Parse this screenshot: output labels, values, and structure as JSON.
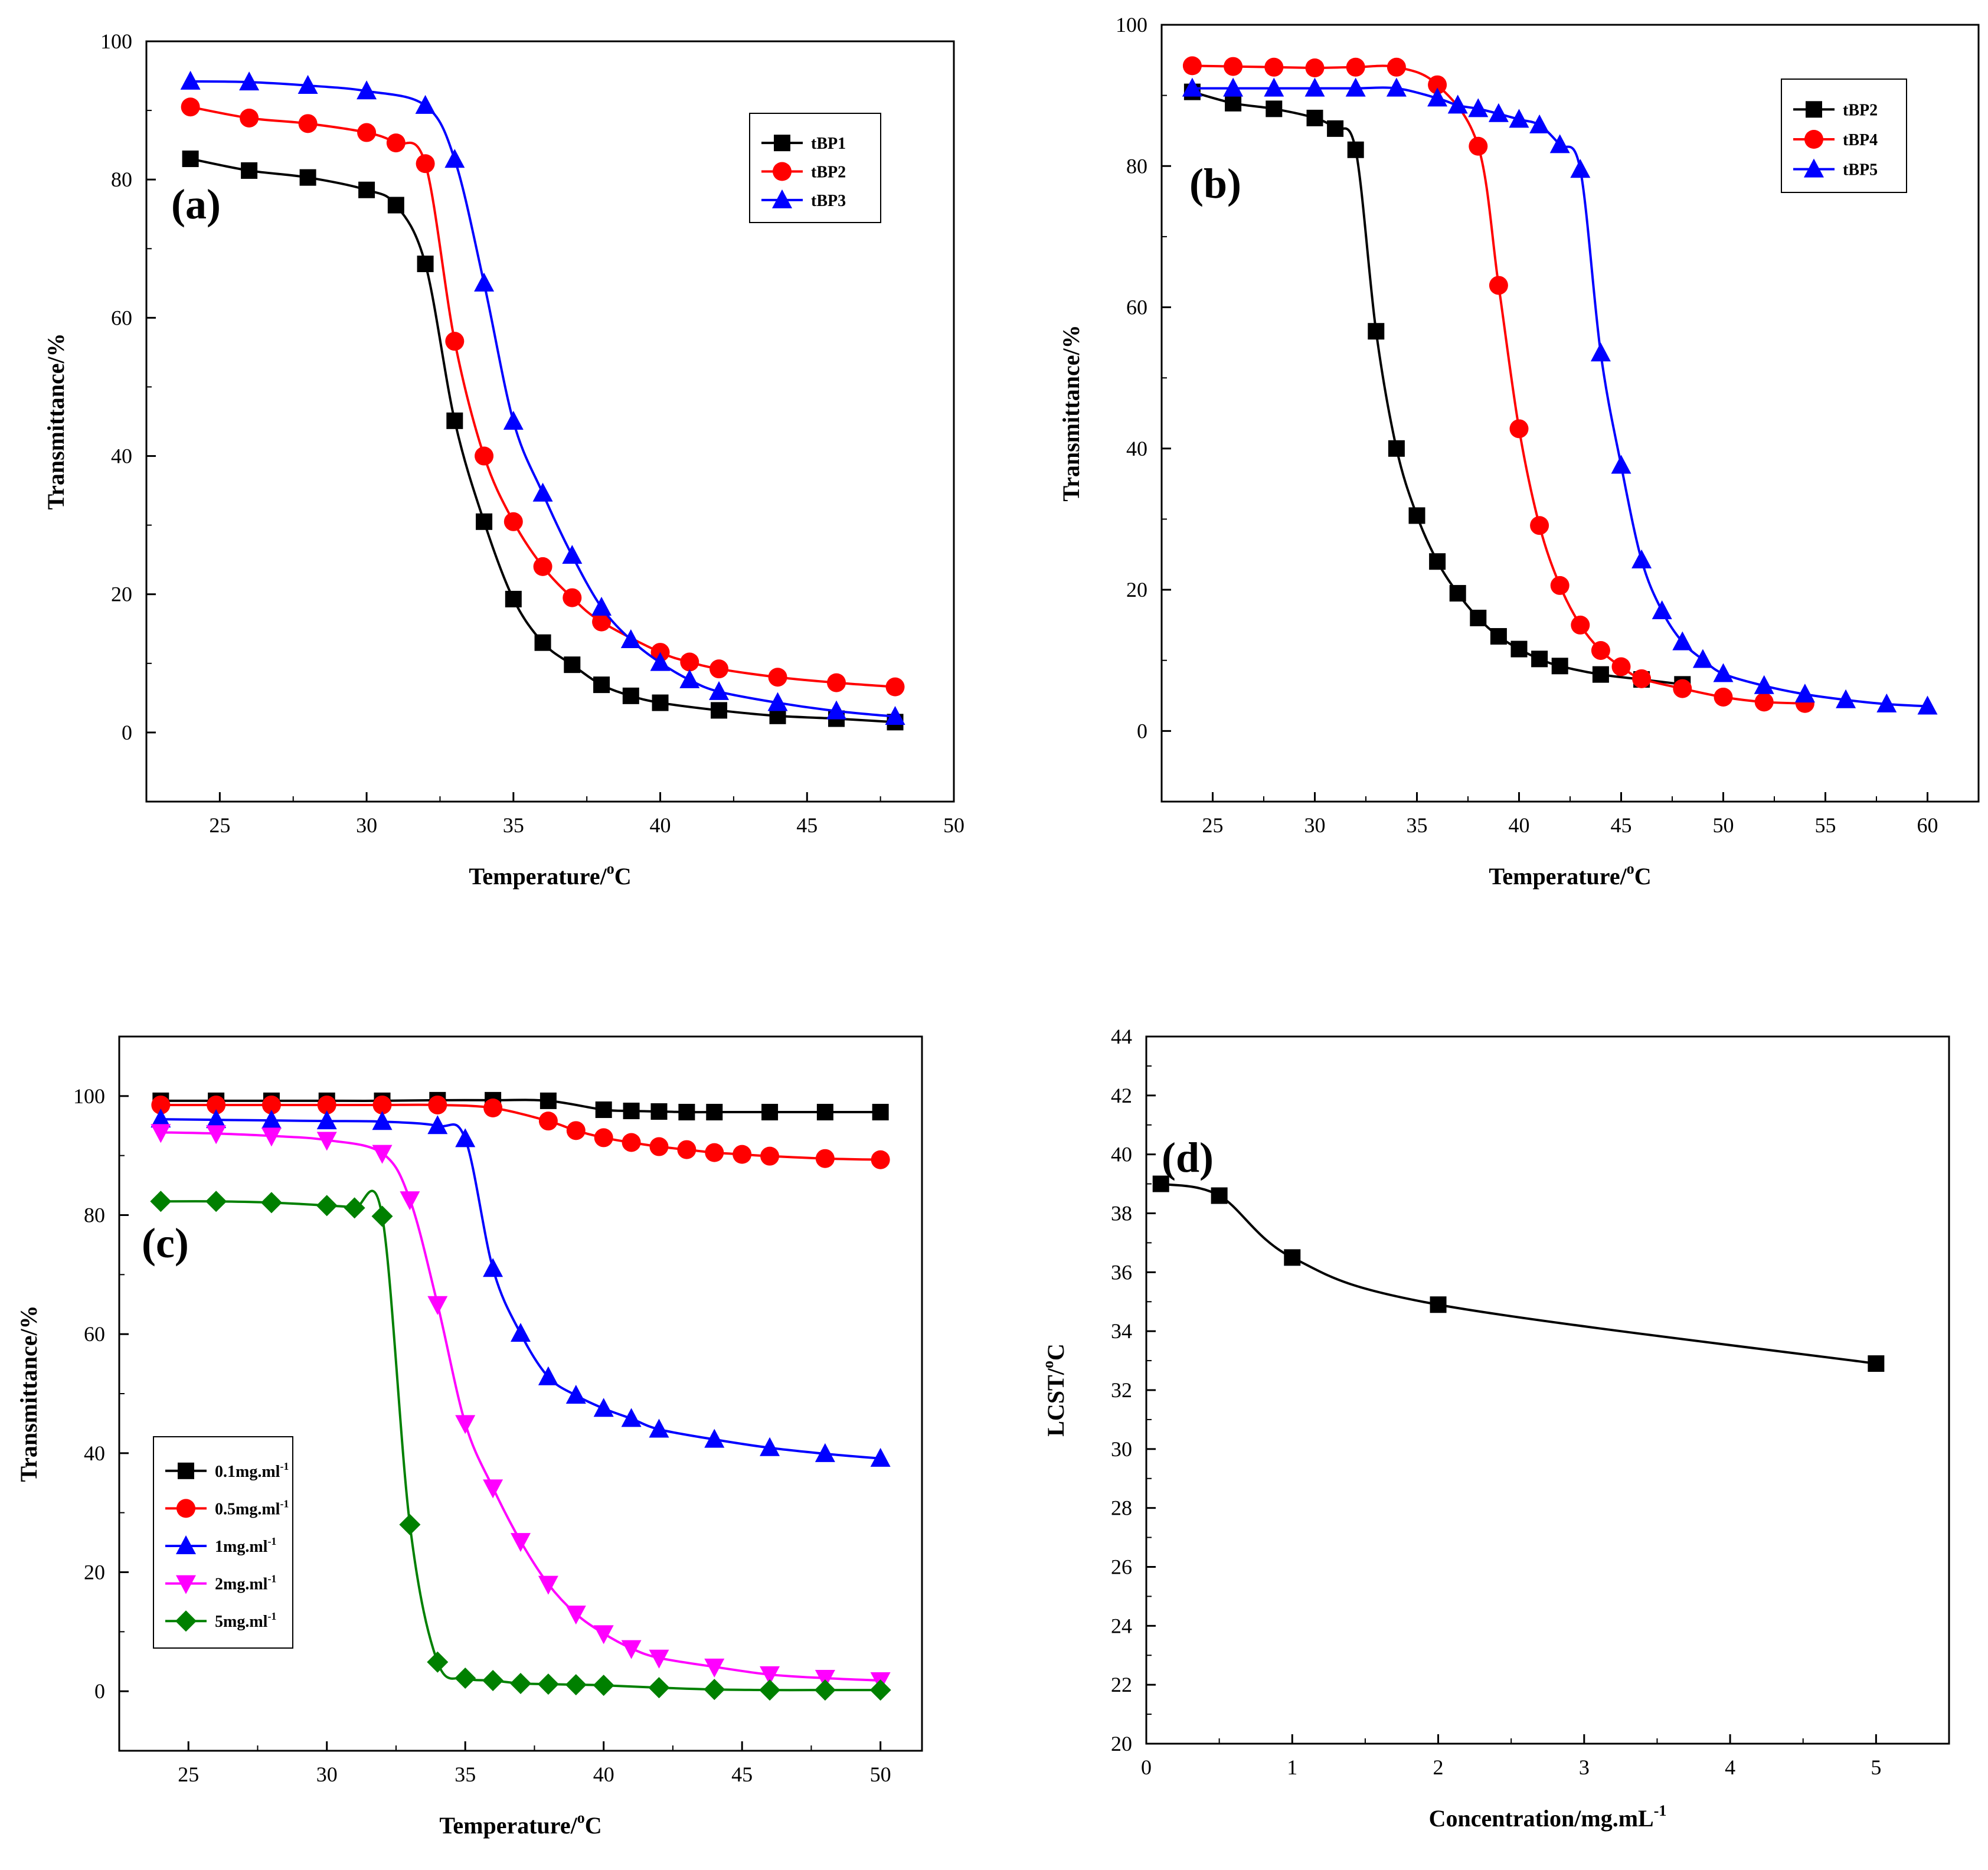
{
  "chart_data": [
    {
      "id": "a",
      "type": "line",
      "panel_label": "(a)",
      "xlabel": "Temperature/",
      "xlabel_sup": "o",
      "xlabel_after": "C",
      "ylabel": "Transmittance/%",
      "xlim": [
        22.5,
        50
      ],
      "ylim": [
        -10,
        100
      ],
      "xticks": [
        25,
        30,
        35,
        40,
        45,
        50
      ],
      "yticks": [
        0,
        20,
        40,
        60,
        80,
        100
      ],
      "legend_position": "top-right",
      "series": [
        {
          "name": "tBP1",
          "color": "#000000",
          "marker": "square",
          "x": [
            24,
            26,
            28,
            30,
            31,
            32,
            33,
            34,
            35,
            36,
            37,
            38,
            39,
            40,
            42,
            44,
            46,
            48
          ],
          "y": [
            83,
            81.3,
            80.3,
            78.5,
            76.3,
            67.8,
            45.1,
            30.5,
            19.3,
            13,
            9.8,
            6.9,
            5.3,
            4.3,
            3.2,
            2.4,
            2.0,
            1.5
          ]
        },
        {
          "name": "tBP2",
          "color": "#ff0000",
          "marker": "circle",
          "x": [
            24,
            26,
            28,
            30,
            31,
            32,
            33,
            34,
            35,
            36,
            37,
            38,
            40,
            41,
            42,
            44,
            46,
            48
          ],
          "y": [
            90.5,
            88.9,
            88.1,
            86.8,
            85.3,
            82.3,
            56.6,
            40,
            30.5,
            24,
            19.5,
            16,
            11.6,
            10.2,
            9.2,
            8.0,
            7.2,
            6.6
          ]
        },
        {
          "name": "tBP3",
          "color": "#0000ff",
          "marker": "triangle-up",
          "x": [
            24,
            26,
            28,
            30,
            32,
            33,
            34,
            35,
            36,
            37,
            38,
            39,
            40,
            41,
            42,
            44,
            46,
            48
          ],
          "y": [
            94.2,
            94.1,
            93.6,
            92.8,
            90.7,
            82.9,
            65,
            45,
            34.6,
            25.6,
            18.1,
            13.4,
            10.1,
            7.6,
            5.9,
            4.3,
            3.1,
            2.3
          ]
        }
      ]
    },
    {
      "id": "b",
      "type": "line",
      "panel_label": "(b)",
      "xlabel": "Temperature/",
      "xlabel_sup": "o",
      "xlabel_after": "C",
      "ylabel": "Transmittance/%",
      "xlim": [
        22.5,
        62.5
      ],
      "ylim": [
        -10,
        100
      ],
      "xticks": [
        25,
        30,
        35,
        40,
        45,
        50,
        55,
        60
      ],
      "yticks": [
        0,
        20,
        40,
        60,
        80,
        100
      ],
      "legend_position": "top-right",
      "series": [
        {
          "name": "tBP2",
          "color": "#000000",
          "marker": "square",
          "x": [
            24,
            26,
            28,
            30,
            31,
            32,
            33,
            34,
            35,
            36,
            37,
            38,
            39,
            40,
            41,
            42,
            44,
            46,
            48
          ],
          "y": [
            90.5,
            88.9,
            88.1,
            86.8,
            85.3,
            82.3,
            56.6,
            40,
            30.5,
            24,
            19.5,
            16,
            13.4,
            11.6,
            10.2,
            9.2,
            8.0,
            7.3,
            6.6
          ]
        },
        {
          "name": "tBP4",
          "color": "#ff0000",
          "marker": "circle",
          "x": [
            24,
            26,
            28,
            30,
            32,
            34,
            36,
            38,
            39,
            40,
            41,
            42,
            43,
            44,
            45,
            46,
            48,
            50,
            52,
            54
          ],
          "y": [
            94.2,
            94.1,
            94.0,
            93.9,
            94.0,
            94.0,
            91.5,
            82.8,
            63.1,
            42.8,
            29.1,
            20.6,
            15,
            11.4,
            9.1,
            7.4,
            6.0,
            4.8,
            4.1,
            3.9
          ]
        },
        {
          "name": "tBP5",
          "color": "#0000ff",
          "marker": "triangle-up",
          "x": [
            24,
            26,
            28,
            30,
            32,
            34,
            36,
            37,
            38,
            39,
            40,
            41,
            42,
            43,
            44,
            45,
            46,
            47,
            48,
            49,
            50,
            52,
            54,
            56,
            58,
            60
          ],
          "y": [
            91,
            91,
            91,
            91,
            91,
            91,
            89.6,
            88.6,
            88.1,
            87.4,
            86.6,
            85.8,
            83,
            79.5,
            53.5,
            37.6,
            24.2,
            17,
            12.6,
            10.1,
            8.1,
            6.4,
            5.2,
            4.4,
            3.8,
            3.5
          ]
        }
      ]
    },
    {
      "id": "c",
      "type": "line",
      "panel_label": "(c)",
      "xlabel": "Temperature/",
      "xlabel_sup": "o",
      "xlabel_after": "C",
      "ylabel": "Transmittance/%",
      "xlim": [
        22.5,
        51.5
      ],
      "ylim": [
        -10,
        110
      ],
      "xticks": [
        25,
        30,
        35,
        40,
        45,
        50
      ],
      "yticks": [
        0,
        20,
        40,
        60,
        80,
        100
      ],
      "legend_position": "bottom-left",
      "series": [
        {
          "name": "0.1mg.ml",
          "name_sup": "-1",
          "color": "#000000",
          "marker": "square",
          "x": [
            24,
            26,
            28,
            30,
            32,
            34,
            36,
            38,
            40,
            41,
            42,
            43,
            44,
            46,
            48,
            50
          ],
          "y": [
            99.2,
            99.2,
            99.2,
            99.2,
            99.2,
            99.3,
            99.3,
            99.2,
            97.7,
            97.5,
            97.4,
            97.3,
            97.3,
            97.3,
            97.3,
            97.3
          ]
        },
        {
          "name": "0.5mg.ml",
          "name_sup": "-1",
          "color": "#ff0000",
          "marker": "circle",
          "x": [
            24,
            26,
            28,
            30,
            32,
            34,
            36,
            38,
            39,
            40,
            41,
            42,
            43,
            44,
            45,
            46,
            48,
            50
          ],
          "y": [
            98.5,
            98.5,
            98.5,
            98.5,
            98.5,
            98.5,
            98.0,
            95.8,
            94.2,
            93,
            92.2,
            91.5,
            91,
            90.5,
            90.2,
            89.9,
            89.5,
            89.3
          ]
        },
        {
          "name": "1mg.ml",
          "name_sup": "-1",
          "color": "#0000ff",
          "marker": "triangle-up",
          "x": [
            24,
            26,
            28,
            30,
            32,
            34,
            35,
            36,
            37,
            38,
            39,
            40,
            41,
            42,
            44,
            46,
            48,
            50
          ],
          "y": [
            96.1,
            96.0,
            95.9,
            95.8,
            95.7,
            95.0,
            92.8,
            71,
            60.1,
            52.8,
            49.7,
            47.5,
            45.8,
            44,
            42.3,
            40.9,
            39.9,
            39.1
          ]
        },
        {
          "name": "2mg.ml",
          "name_sup": "-1",
          "color": "#ff00ff",
          "marker": "triangle-down",
          "x": [
            24,
            26,
            28,
            30,
            32,
            33,
            34,
            35,
            36,
            37,
            38,
            39,
            40,
            41,
            42,
            44,
            46,
            48,
            50
          ],
          "y": [
            93.9,
            93.7,
            93.3,
            92.6,
            90.4,
            82.6,
            65,
            45,
            34.2,
            25.2,
            18,
            13,
            9.7,
            7.2,
            5.6,
            4.1,
            2.8,
            2.2,
            1.8
          ]
        },
        {
          "name": "5mg.ml",
          "name_sup": "-1",
          "color": "#008000",
          "marker": "diamond",
          "x": [
            24,
            26,
            28,
            30,
            31,
            32,
            33,
            34,
            35,
            36,
            37,
            38,
            39,
            40,
            42,
            44,
            46,
            48,
            50
          ],
          "y": [
            82.3,
            82.3,
            82.1,
            81.6,
            81.2,
            79.8,
            28,
            4.9,
            2.2,
            1.8,
            1.3,
            1.2,
            1.1,
            1.0,
            0.6,
            0.3,
            0.2,
            0.2,
            0.2
          ]
        }
      ]
    },
    {
      "id": "d",
      "type": "scatter",
      "panel_label": "(d)",
      "xlabel": "Concentration/mg.mL",
      "xlabel_sup": "-1",
      "xlabel_after": "",
      "ylabel": "LCST/",
      "ylabel_sup": "o",
      "ylabel_after": "C",
      "xlim": [
        0,
        5.5
      ],
      "ylim": [
        20,
        44
      ],
      "xticks": [
        0,
        1,
        2,
        3,
        4,
        5
      ],
      "yticks": [
        20,
        22,
        24,
        26,
        28,
        30,
        32,
        34,
        36,
        38,
        40,
        42,
        44
      ],
      "series": [
        {
          "name": "LCST",
          "color": "#000000",
          "marker": "square",
          "x": [
            0.1,
            0.5,
            1,
            2,
            5
          ],
          "y": [
            39,
            38.6,
            36.5,
            34.9,
            32.9
          ]
        }
      ]
    }
  ]
}
